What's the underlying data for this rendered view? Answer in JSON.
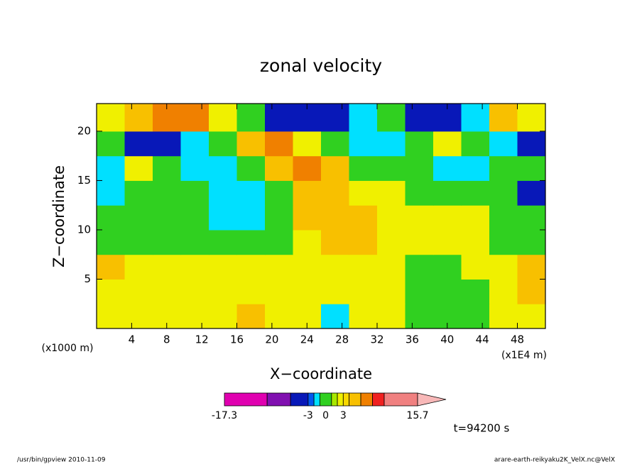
{
  "chart_data": {
    "type": "contour",
    "title": "zonal velocity",
    "x_label": "X−coordinate",
    "y_label": "Z−coordinate",
    "x_unit": "(x1E4 m)",
    "y_unit": "(x1000 m)",
    "time_label": "t=94200 s",
    "footer_left": "/usr/bin/gpview   2010-11-09",
    "footer_right": "arare-earth-reikyaku2K_VelX.nc@VelX",
    "xlim": [
      0,
      51.2
    ],
    "ylim": [
      0,
      22.8
    ],
    "xticks": [
      4,
      8,
      12,
      16,
      20,
      24,
      28,
      32,
      36,
      40,
      44,
      48
    ],
    "yticks": [
      5,
      10,
      15,
      20
    ],
    "x": [
      1.6,
      4.8,
      8,
      11.2,
      14.4,
      17.6,
      20.8,
      24,
      27.2,
      30.4,
      33.6,
      36.8,
      40,
      43.2,
      46.4,
      49.6
    ],
    "y": [
      1.25,
      3.75,
      6.25,
      8.75,
      11.25,
      13.75,
      16.25,
      18.75,
      21.25
    ],
    "z": [
      [
        2.5,
        2.5,
        2.5,
        2.5,
        2.5,
        5,
        2.5,
        2.5,
        -1.5,
        2.5,
        2.5,
        0,
        0,
        0,
        2.5,
        2.5
      ],
      [
        2.5,
        2.5,
        2.5,
        2.5,
        2.5,
        2.5,
        2.5,
        2.5,
        2.5,
        2.5,
        2.5,
        0,
        0,
        0,
        2.5,
        5
      ],
      [
        5,
        2.5,
        2.5,
        2.5,
        2.5,
        2.5,
        2.5,
        2.5,
        2.5,
        2.5,
        2.5,
        0,
        0,
        2.5,
        2.5,
        5
      ],
      [
        0,
        0,
        0,
        0,
        0,
        0,
        0,
        2.5,
        5,
        5,
        2.5,
        2.5,
        2.5,
        2.5,
        0,
        0
      ],
      [
        0,
        0,
        0,
        0,
        -1.5,
        -1.5,
        0,
        5,
        5,
        5,
        2.5,
        2.5,
        2.5,
        2.5,
        0,
        0
      ],
      [
        -1.5,
        0,
        0,
        0,
        -1.5,
        -1.5,
        0,
        5,
        5,
        2.5,
        2.5,
        0,
        0,
        0,
        0,
        -4
      ],
      [
        -1.5,
        2.5,
        0,
        -1.5,
        -1.5,
        0,
        5,
        7,
        5,
        0,
        0,
        0,
        -1.5,
        -1.5,
        0,
        0
      ],
      [
        0,
        -4,
        -4,
        -1.5,
        0,
        5,
        7,
        2.5,
        0,
        -1.5,
        -1.5,
        0,
        2.5,
        0,
        -1.5,
        -4
      ],
      [
        2.5,
        5,
        7,
        7,
        2.5,
        0,
        -4,
        -4,
        -4,
        -1.5,
        0,
        -4,
        -4,
        -1.5,
        5,
        2.5
      ]
    ],
    "colorbar": {
      "levels": [
        -17.3,
        -10,
        -6,
        -3,
        -2,
        -1,
        1,
        2,
        3,
        4,
        6,
        8,
        10,
        15.7
      ],
      "colors": [
        "#e000b0",
        "#8010b0",
        "#0818b8",
        "#0058f0",
        "#00e0ff",
        "#30d020",
        "#a8e800",
        "#f0f000",
        "#f8d800",
        "#f8c000",
        "#f08000",
        "#f02020",
        "#f08080"
      ],
      "extend_color": "#f8b8b8",
      "ticks": [
        -17.3,
        -3,
        0,
        3,
        15.7
      ]
    }
  }
}
